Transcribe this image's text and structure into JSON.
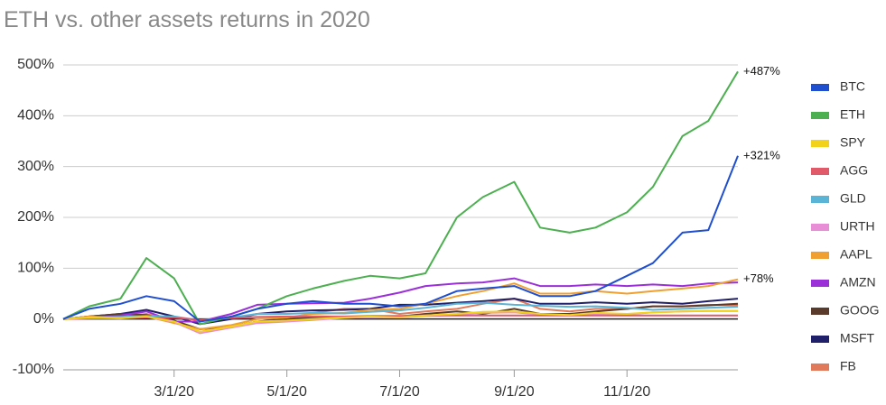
{
  "chart_data": {
    "type": "line",
    "title": "ETH vs. other assets returns in 2020",
    "x": [
      "1/1/20",
      "1/15/20",
      "2/1/20",
      "2/15/20",
      "3/1/20",
      "3/15/20",
      "4/1/20",
      "4/15/20",
      "5/1/20",
      "5/15/20",
      "6/1/20",
      "6/15/20",
      "7/1/20",
      "7/15/20",
      "8/1/20",
      "8/15/20",
      "9/1/20",
      "9/15/20",
      "10/1/20",
      "10/15/20",
      "11/1/20",
      "11/15/20",
      "12/1/20",
      "12/15/20",
      "12/31/20"
    ],
    "xlim": [
      "1/1/20",
      "12/31/20"
    ],
    "xticks": [
      "3/1/20",
      "5/1/20",
      "7/1/20",
      "9/1/20",
      "11/1/20"
    ],
    "ylim": [
      -100,
      500
    ],
    "yticks": [
      {
        "value": -100,
        "label": "-100%"
      },
      {
        "value": 0,
        "label": "0%"
      },
      {
        "value": 100,
        "label": "100%"
      },
      {
        "value": 200,
        "label": "200%"
      },
      {
        "value": 300,
        "label": "300%"
      },
      {
        "value": 400,
        "label": "400%"
      },
      {
        "value": 500,
        "label": "500%"
      }
    ],
    "grid": true,
    "legend": "right",
    "series": [
      {
        "name": "BTC",
        "color": "#1f4fcf",
        "end_label": "+321%",
        "values": [
          0,
          20,
          30,
          45,
          35,
          -5,
          5,
          20,
          30,
          35,
          30,
          30,
          25,
          30,
          55,
          60,
          65,
          45,
          45,
          55,
          85,
          110,
          170,
          175,
          321
        ]
      },
      {
        "name": "ETH",
        "color": "#4caf50",
        "end_label": "+487%",
        "values": [
          0,
          25,
          40,
          120,
          80,
          -10,
          5,
          20,
          45,
          60,
          75,
          85,
          80,
          90,
          200,
          240,
          270,
          180,
          170,
          180,
          210,
          260,
          360,
          390,
          487
        ]
      },
      {
        "name": "SPY",
        "color": "#f2d21b",
        "values": [
          0,
          3,
          2,
          5,
          -5,
          -25,
          -15,
          -5,
          -3,
          0,
          3,
          5,
          3,
          7,
          10,
          14,
          15,
          10,
          8,
          12,
          10,
          13,
          15,
          16,
          16
        ]
      },
      {
        "name": "AGG",
        "color": "#e05a6a",
        "values": [
          0,
          1,
          2,
          3,
          3,
          -2,
          2,
          4,
          5,
          5,
          5,
          6,
          6,
          7,
          7,
          7,
          7,
          7,
          7,
          7,
          7,
          7,
          7,
          7,
          7
        ]
      },
      {
        "name": "GLD",
        "color": "#5ab4d6",
        "values": [
          0,
          3,
          4,
          6,
          5,
          -3,
          3,
          10,
          10,
          12,
          11,
          14,
          17,
          22,
          30,
          32,
          28,
          26,
          24,
          25,
          22,
          18,
          20,
          22,
          24
        ]
      },
      {
        "name": "URTH",
        "color": "#e88ed6",
        "values": [
          0,
          2,
          1,
          4,
          -6,
          -28,
          -17,
          -8,
          -5,
          -2,
          2,
          4,
          3,
          6,
          8,
          12,
          13,
          9,
          7,
          10,
          9,
          13,
          15,
          16,
          16
        ]
      },
      {
        "name": "AAPL",
        "color": "#f0a030",
        "end_label": "+78%",
        "values": [
          0,
          5,
          3,
          5,
          -8,
          -20,
          -12,
          0,
          3,
          10,
          12,
          18,
          20,
          30,
          45,
          55,
          70,
          50,
          50,
          55,
          50,
          55,
          60,
          65,
          78
        ]
      },
      {
        "name": "AMZN",
        "color": "#9b30d9",
        "values": [
          0,
          2,
          7,
          15,
          -5,
          -5,
          10,
          28,
          30,
          31,
          32,
          40,
          52,
          65,
          70,
          72,
          80,
          65,
          65,
          68,
          65,
          68,
          65,
          70,
          72
        ]
      },
      {
        "name": "GOOG",
        "color": "#5a3a2a",
        "values": [
          0,
          5,
          10,
          8,
          -3,
          -20,
          -15,
          -5,
          0,
          3,
          3,
          5,
          5,
          10,
          15,
          10,
          20,
          10,
          10,
          15,
          20,
          25,
          25,
          27,
          30
        ]
      },
      {
        "name": "MSFT",
        "color": "#20206a",
        "values": [
          0,
          5,
          10,
          18,
          5,
          -10,
          0,
          10,
          15,
          17,
          18,
          20,
          28,
          28,
          32,
          35,
          40,
          30,
          30,
          33,
          30,
          33,
          30,
          35,
          40
        ]
      },
      {
        "name": "FB",
        "color": "#e07a5a",
        "values": [
          0,
          5,
          5,
          10,
          -5,
          -25,
          -15,
          -5,
          0,
          12,
          20,
          20,
          10,
          15,
          20,
          30,
          40,
          20,
          15,
          20,
          20,
          25,
          25,
          28,
          27
        ]
      }
    ]
  }
}
